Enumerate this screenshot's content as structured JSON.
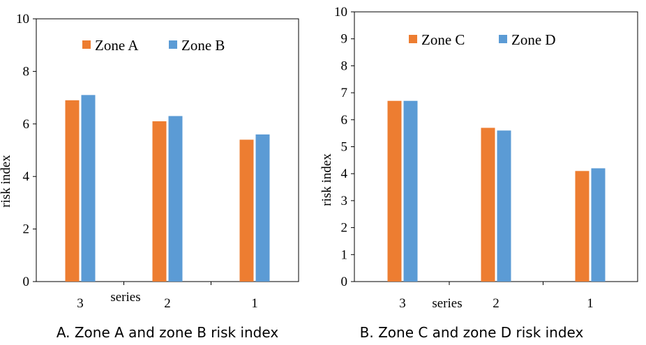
{
  "chart_data": [
    {
      "type": "bar",
      "categories": [
        "3",
        "2",
        "1"
      ],
      "series": [
        {
          "name": "Zone A",
          "values": [
            6.9,
            6.1,
            5.4
          ],
          "color": "#ED7D31"
        },
        {
          "name": "Zone B",
          "values": [
            7.1,
            6.3,
            5.6
          ],
          "color": "#5B9BD5"
        }
      ],
      "xlabel": "series",
      "ylabel": "risk index",
      "ylim": [
        0,
        10
      ],
      "yticks": [
        "0",
        "2",
        "4",
        "6",
        "8",
        "10"
      ],
      "legend": "top",
      "grid": false,
      "caption": "A. Zone A and zone B risk index"
    },
    {
      "type": "bar",
      "categories": [
        "3",
        "2",
        "1"
      ],
      "series": [
        {
          "name": "Zone C",
          "values": [
            6.7,
            5.7,
            4.1
          ],
          "color": "#ED7D31"
        },
        {
          "name": "Zone D",
          "values": [
            6.7,
            5.6,
            4.2
          ],
          "color": "#5B9BD5"
        }
      ],
      "xlabel": "series",
      "ylabel": "risk index",
      "ylim": [
        0,
        10
      ],
      "yticks": [
        "0",
        "1",
        "2",
        "3",
        "4",
        "5",
        "6",
        "7",
        "8",
        "9",
        "10"
      ],
      "legend": "top",
      "grid": false,
      "caption": "B. Zone C and zone D risk index"
    }
  ]
}
